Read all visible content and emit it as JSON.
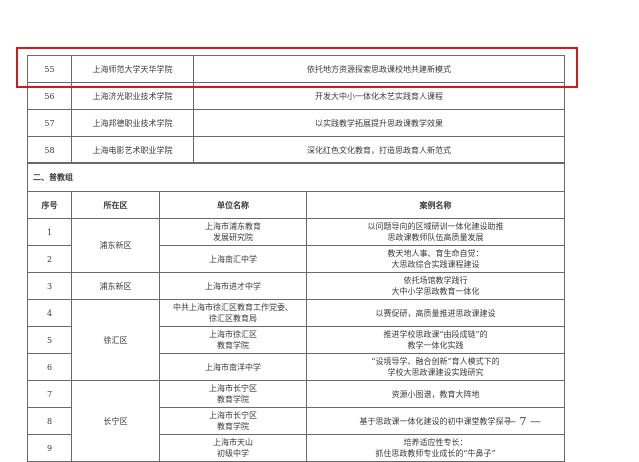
{
  "upper_rows": [
    {
      "no": "55",
      "unit": "上海师范大学天华学院",
      "case": "依托地方资源探索思政课校地共建新模式"
    },
    {
      "no": "56",
      "unit": "上海济光职业技术学院",
      "case": "开发大中小一体化木艺实践育人课程"
    },
    {
      "no": "57",
      "unit": "上海邦德职业技术学院",
      "case": "以实践教学拓展提升思政课教学效果"
    },
    {
      "no": "58",
      "unit": "上海电影艺术职业学院",
      "case": "深化红色文化教育，打造思政育人新范式"
    }
  ],
  "highlight_color": "#d11a1f",
  "section_title": "二、普教组",
  "headers": {
    "no": "序号",
    "district": "所在区",
    "unit": "单位名称",
    "case": "案例名称"
  },
  "districts": [
    "浦东新区",
    "浦东新区",
    "徐汇区",
    "长宁区"
  ],
  "rows": [
    {
      "no": "1",
      "unit": [
        "上海市浦东教育",
        "发展研究院"
      ],
      "case": [
        "以问题导向的区域研训一体化建设助推",
        "思政课教师队伍高质量发展"
      ]
    },
    {
      "no": "2",
      "unit": [
        "上海南汇中学"
      ],
      "case": [
        "教天地人事、育生命自觉：",
        "大思政综合实践课程建设"
      ]
    },
    {
      "no": "3",
      "unit": [
        "上海市进才中学"
      ],
      "case": [
        "依托场馆教学践行",
        "大中小学思政教育一体化"
      ]
    },
    {
      "no": "4",
      "unit": [
        "中共上海市徐汇区教育工作党委、",
        "徐汇区教育局"
      ],
      "case": [
        "以赛促研，高质量推进思政课建设"
      ]
    },
    {
      "no": "5",
      "unit": [
        "上海市徐汇区",
        "教育学院"
      ],
      "case": [
        "推进学校思政课“由段成链”的",
        "教学一体化实践"
      ]
    },
    {
      "no": "6",
      "unit": [
        "上海市南洋中学"
      ],
      "case": [
        "“设境导学、融合创新”育人模式下的",
        "学校大思政课建设实践研究"
      ]
    },
    {
      "no": "7",
      "unit": [
        "上海市长宁区",
        "教育学院"
      ],
      "case": [
        "资源小图谱，教育大阵地"
      ]
    },
    {
      "no": "8",
      "unit": [
        "上海市长宁区",
        "教育学院"
      ],
      "case": [
        "基于思政课一体化建设的初中课堂教学探寻"
      ]
    },
    {
      "no": "9",
      "unit": [
        "上海市天山",
        "初级中学"
      ],
      "case": [
        "培养适应性专长：",
        "抓住思政教师专业成长的“牛鼻子”"
      ]
    }
  ],
  "page_number": "— 7 —"
}
